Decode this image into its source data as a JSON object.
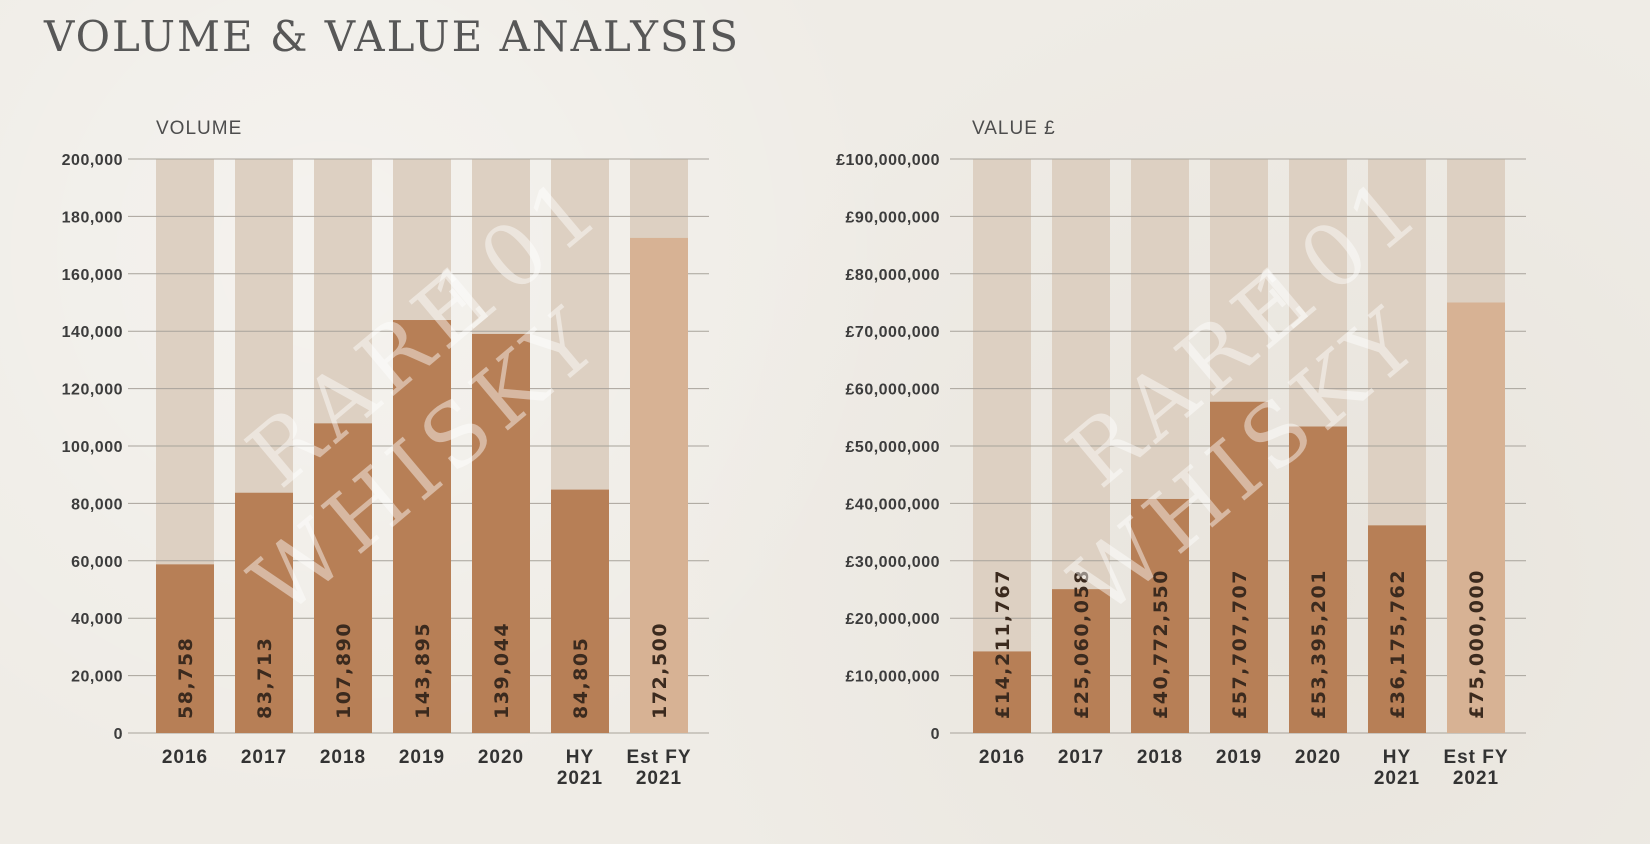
{
  "page": {
    "title": "VOLUME & VALUE ANALYSIS"
  },
  "watermark": {
    "line1": "RARE",
    "line2": "WHISKY",
    "mark": "101"
  },
  "colors": {
    "bar": "#b77f56",
    "estimate_bar": "#d7b294",
    "track": "#ddd0c2",
    "grid": "#a8a39b"
  },
  "chart_data": [
    {
      "type": "bar",
      "title": "VOLUME",
      "categories": [
        [
          "2016"
        ],
        [
          "2017"
        ],
        [
          "2018"
        ],
        [
          "2019"
        ],
        [
          "2020"
        ],
        [
          "HY",
          "2021"
        ],
        [
          "Est FY",
          "2021"
        ]
      ],
      "values": [
        58758,
        83713,
        107890,
        143895,
        139044,
        84805,
        172500
      ],
      "value_labels": [
        "58,758",
        "83,713",
        "107,890",
        "143,895",
        "139,044",
        "84,805",
        "172,500"
      ],
      "estimate_flags": [
        false,
        false,
        false,
        false,
        false,
        false,
        true
      ],
      "ylim": [
        0,
        200000
      ],
      "yticks": [
        0,
        20000,
        40000,
        60000,
        80000,
        100000,
        120000,
        140000,
        160000,
        180000,
        200000
      ],
      "ytick_labels": [
        "0",
        "20,000",
        "40,000",
        "60,000",
        "80,000",
        "100,000",
        "120,000",
        "140,000",
        "160,000",
        "180,000",
        "200,000"
      ],
      "grid": true
    },
    {
      "type": "bar",
      "title": "VALUE £",
      "categories": [
        [
          "2016"
        ],
        [
          "2017"
        ],
        [
          "2018"
        ],
        [
          "2019"
        ],
        [
          "2020"
        ],
        [
          "HY",
          "2021"
        ],
        [
          "Est FY",
          "2021"
        ]
      ],
      "values": [
        14211767,
        25060058,
        40772550,
        57707707,
        53395201,
        36175762,
        75000000
      ],
      "value_labels": [
        "£14,211,767",
        "£25,060,058",
        "£40,772,550",
        "£57,707,707",
        "£53,395,201",
        "£36,175,762",
        "£75,000,000"
      ],
      "estimate_flags": [
        false,
        false,
        false,
        false,
        false,
        false,
        true
      ],
      "ylim": [
        0,
        100000000
      ],
      "yticks": [
        0,
        10000000,
        20000000,
        30000000,
        40000000,
        50000000,
        60000000,
        70000000,
        80000000,
        90000000,
        100000000
      ],
      "ytick_labels": [
        "0",
        "£10,000,000",
        "£20,000,000",
        "£30,000,000",
        "£40,000,000",
        "£50,000,000",
        "£60,000,000",
        "£70,000,000",
        "£80,000,000",
        "£90,000,000",
        "£100,000,000"
      ],
      "grid": true
    }
  ]
}
